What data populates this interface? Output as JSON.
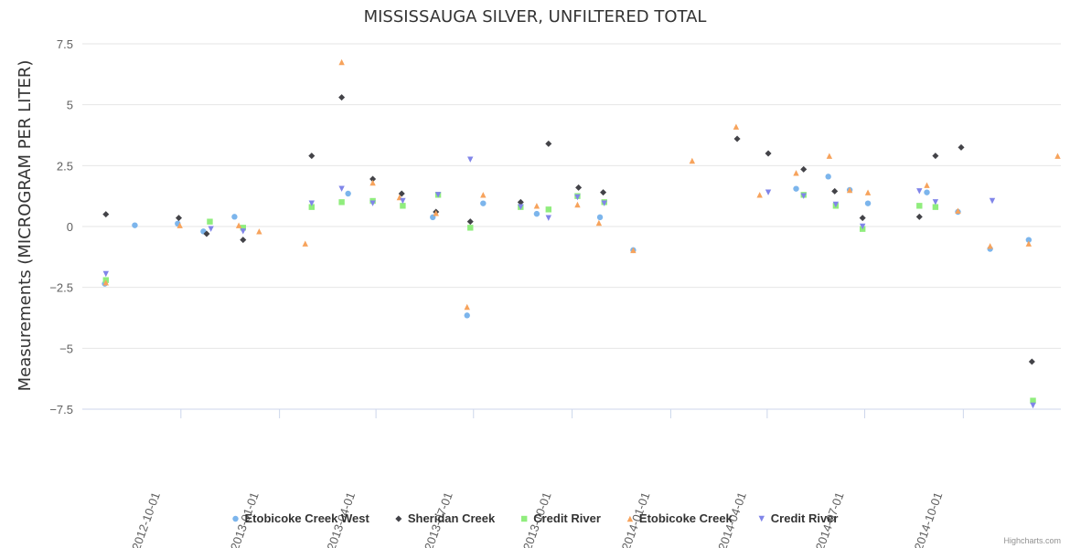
{
  "chart_data": {
    "type": "scatter",
    "title": "MISSISSAUGA SILVER, UNFILTERED TOTAL",
    "ylabel": "Measurements (MICROGRAM PER LITER)",
    "xlabel": "",
    "ylim": [
      -7.5,
      7.5
    ],
    "y_ticks": [
      {
        "value": 7.5,
        "label": "7.5"
      },
      {
        "value": 5,
        "label": "5"
      },
      {
        "value": 2.5,
        "label": "2.5"
      },
      {
        "value": 0,
        "label": "0"
      },
      {
        "value": -2.5,
        "label": "−2.5"
      },
      {
        "value": -5,
        "label": "−5"
      },
      {
        "value": -7.5,
        "label": "−7.5"
      }
    ],
    "xlim": [
      "2012-07-01",
      "2014-12-31"
    ],
    "x_ticks": [
      "2012-10-01",
      "2013-01-01",
      "2013-04-01",
      "2013-07-01",
      "2013-10-01",
      "2014-01-01",
      "2014-04-01",
      "2014-07-01",
      "2014-10-01"
    ],
    "legend_position": "bottom-center",
    "credits": "Highcharts.com",
    "series": [
      {
        "name": "Etobicoke Creek West",
        "color": "#7cb5ec",
        "marker": "circle",
        "points": [
          {
            "date": "2012-07-22",
            "value": -2.35
          },
          {
            "date": "2012-08-19",
            "value": 0.05
          },
          {
            "date": "2012-09-28",
            "value": 0.12
          },
          {
            "date": "2012-10-22",
            "value": -0.2
          },
          {
            "date": "2012-11-20",
            "value": 0.4
          },
          {
            "date": "2013-03-06",
            "value": 1.35
          },
          {
            "date": "2013-05-24",
            "value": 0.38
          },
          {
            "date": "2013-06-25",
            "value": -3.65
          },
          {
            "date": "2013-07-10",
            "value": 0.95
          },
          {
            "date": "2013-08-29",
            "value": 0.52
          },
          {
            "date": "2013-10-27",
            "value": 0.38
          },
          {
            "date": "2013-11-27",
            "value": -0.97
          },
          {
            "date": "2014-04-28",
            "value": 1.55
          },
          {
            "date": "2014-05-28",
            "value": 2.05
          },
          {
            "date": "2014-06-17",
            "value": 1.5
          },
          {
            "date": "2014-07-04",
            "value": 0.95
          },
          {
            "date": "2014-08-28",
            "value": 1.4
          },
          {
            "date": "2014-09-26",
            "value": 0.6
          },
          {
            "date": "2014-10-26",
            "value": -0.92
          },
          {
            "date": "2014-12-01",
            "value": -0.55
          }
        ]
      },
      {
        "name": "Sheridan Creek",
        "color": "#434348",
        "marker": "diamond",
        "points": [
          {
            "date": "2012-07-23",
            "value": 0.5
          },
          {
            "date": "2012-09-29",
            "value": 0.35
          },
          {
            "date": "2012-10-25",
            "value": -0.3
          },
          {
            "date": "2012-11-28",
            "value": -0.55
          },
          {
            "date": "2013-01-31",
            "value": 2.9
          },
          {
            "date": "2013-02-28",
            "value": 5.3
          },
          {
            "date": "2013-03-29",
            "value": 1.95
          },
          {
            "date": "2013-04-25",
            "value": 1.35
          },
          {
            "date": "2013-05-27",
            "value": 0.6
          },
          {
            "date": "2013-06-28",
            "value": 0.2
          },
          {
            "date": "2013-08-14",
            "value": 1.0
          },
          {
            "date": "2013-09-09",
            "value": 3.4
          },
          {
            "date": "2013-10-07",
            "value": 1.6
          },
          {
            "date": "2013-10-30",
            "value": 1.4
          },
          {
            "date": "2014-03-04",
            "value": 3.6
          },
          {
            "date": "2014-04-02",
            "value": 3.0
          },
          {
            "date": "2014-05-05",
            "value": 2.35
          },
          {
            "date": "2014-06-03",
            "value": 1.45
          },
          {
            "date": "2014-06-29",
            "value": 0.35
          },
          {
            "date": "2014-08-21",
            "value": 0.4
          },
          {
            "date": "2014-09-05",
            "value": 2.9
          },
          {
            "date": "2014-09-29",
            "value": 3.25
          },
          {
            "date": "2014-12-04",
            "value": -5.55
          }
        ]
      },
      {
        "name": "Credit River",
        "color": "#90ed7d",
        "marker": "square",
        "points": [
          {
            "date": "2012-07-23",
            "value": -2.2
          },
          {
            "date": "2012-10-28",
            "value": 0.2
          },
          {
            "date": "2012-11-28",
            "value": -0.05
          },
          {
            "date": "2013-01-31",
            "value": 0.8
          },
          {
            "date": "2013-02-28",
            "value": 1.0
          },
          {
            "date": "2013-03-29",
            "value": 1.05
          },
          {
            "date": "2013-04-26",
            "value": 0.85
          },
          {
            "date": "2013-05-29",
            "value": 1.3
          },
          {
            "date": "2013-06-28",
            "value": -0.05
          },
          {
            "date": "2013-08-14",
            "value": 0.8
          },
          {
            "date": "2013-09-09",
            "value": 0.7
          },
          {
            "date": "2013-10-06",
            "value": 1.25
          },
          {
            "date": "2013-10-31",
            "value": 1.0
          },
          {
            "date": "2014-05-05",
            "value": 1.3
          },
          {
            "date": "2014-06-04",
            "value": 0.85
          },
          {
            "date": "2014-06-29",
            "value": -0.1
          },
          {
            "date": "2014-08-21",
            "value": 0.85
          },
          {
            "date": "2014-09-05",
            "value": 0.8
          },
          {
            "date": "2014-12-05",
            "value": -7.15
          }
        ]
      },
      {
        "name": "Etobicoke Creek",
        "color": "#f7a35c",
        "marker": "triangle",
        "points": [
          {
            "date": "2012-07-23",
            "value": -2.3
          },
          {
            "date": "2012-09-30",
            "value": 0.05
          },
          {
            "date": "2012-11-24",
            "value": 0.05
          },
          {
            "date": "2012-12-13",
            "value": -0.2
          },
          {
            "date": "2013-01-25",
            "value": -0.7
          },
          {
            "date": "2013-02-28",
            "value": 6.75
          },
          {
            "date": "2013-03-29",
            "value": 1.8
          },
          {
            "date": "2013-04-23",
            "value": 1.2
          },
          {
            "date": "2013-05-27",
            "value": 0.55
          },
          {
            "date": "2013-06-25",
            "value": -3.3
          },
          {
            "date": "2013-07-10",
            "value": 1.3
          },
          {
            "date": "2013-08-29",
            "value": 0.85
          },
          {
            "date": "2013-10-06",
            "value": 0.9
          },
          {
            "date": "2013-10-26",
            "value": 0.15
          },
          {
            "date": "2013-11-27",
            "value": -0.97
          },
          {
            "date": "2014-01-21",
            "value": 2.7
          },
          {
            "date": "2014-03-03",
            "value": 4.1
          },
          {
            "date": "2014-03-25",
            "value": 1.3
          },
          {
            "date": "2014-04-28",
            "value": 2.2
          },
          {
            "date": "2014-05-29",
            "value": 2.9
          },
          {
            "date": "2014-06-17",
            "value": 1.5
          },
          {
            "date": "2014-07-04",
            "value": 1.4
          },
          {
            "date": "2014-08-28",
            "value": 1.7
          },
          {
            "date": "2014-09-26",
            "value": 0.65
          },
          {
            "date": "2014-10-26",
            "value": -0.8
          },
          {
            "date": "2014-12-01",
            "value": -0.7
          },
          {
            "date": "2014-12-28",
            "value": 2.9
          }
        ]
      },
      {
        "name": "Credit River",
        "color": "#8085e9",
        "marker": "triangle-down",
        "points": [
          {
            "date": "2012-07-23",
            "value": -1.95
          },
          {
            "date": "2012-10-29",
            "value": -0.1
          },
          {
            "date": "2012-11-28",
            "value": -0.2
          },
          {
            "date": "2013-01-31",
            "value": 0.95
          },
          {
            "date": "2013-02-28",
            "value": 1.55
          },
          {
            "date": "2013-03-29",
            "value": 0.95
          },
          {
            "date": "2013-04-26",
            "value": 1.05
          },
          {
            "date": "2013-05-29",
            "value": 1.3
          },
          {
            "date": "2013-06-28",
            "value": 2.75
          },
          {
            "date": "2013-08-14",
            "value": 0.8
          },
          {
            "date": "2013-09-09",
            "value": 0.35
          },
          {
            "date": "2013-10-06",
            "value": 1.2
          },
          {
            "date": "2013-10-31",
            "value": 0.95
          },
          {
            "date": "2014-04-02",
            "value": 1.4
          },
          {
            "date": "2014-05-05",
            "value": 1.25
          },
          {
            "date": "2014-06-04",
            "value": 0.9
          },
          {
            "date": "2014-06-29",
            "value": 0.0
          },
          {
            "date": "2014-08-21",
            "value": 1.45
          },
          {
            "date": "2014-09-05",
            "value": 1.0
          },
          {
            "date": "2014-10-28",
            "value": 1.05
          },
          {
            "date": "2014-12-05",
            "value": -7.35
          }
        ]
      }
    ]
  }
}
